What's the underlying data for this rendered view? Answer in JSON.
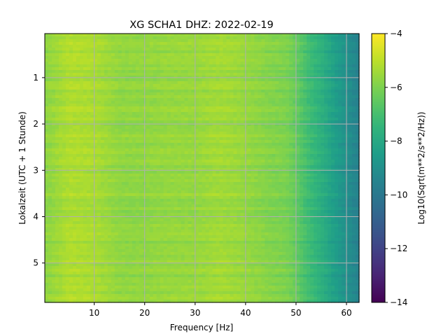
{
  "chart_data": {
    "type": "heatmap",
    "title": "XG SCHA1  DHZ: 2022-02-19",
    "xlabel": "Frequency [Hz]",
    "ylabel": "Lokalzeit (UTC + 1 Stunde)",
    "xlim": [
      0.2,
      62.5
    ],
    "ylim": [
      5.85,
      0.05
    ],
    "x_ticks": [
      10,
      20,
      30,
      40,
      50,
      60
    ],
    "y_ticks": [
      1,
      2,
      3,
      4,
      5
    ],
    "grid": true,
    "colormap": "viridis",
    "colorbar": {
      "label": "Log10(Sqrt(m**2/s**2/Hz))",
      "range": [
        -14,
        -4
      ],
      "ticks": [
        -4,
        -6,
        -8,
        -10,
        -12,
        -14
      ]
    },
    "spectrum_profile": {
      "frequency_hz": [
        0,
        5,
        10,
        15,
        20,
        25,
        30,
        35,
        40,
        45,
        48,
        50,
        52,
        55,
        58,
        60,
        62.5
      ],
      "log10_asd": [
        -5.8,
        -5.2,
        -5.3,
        -5.7,
        -5.7,
        -5.6,
        -5.6,
        -5.4,
        -5.6,
        -5.9,
        -6.0,
        -6.4,
        -7.0,
        -7.7,
        -8.5,
        -9.0,
        -9.6
      ]
    }
  }
}
